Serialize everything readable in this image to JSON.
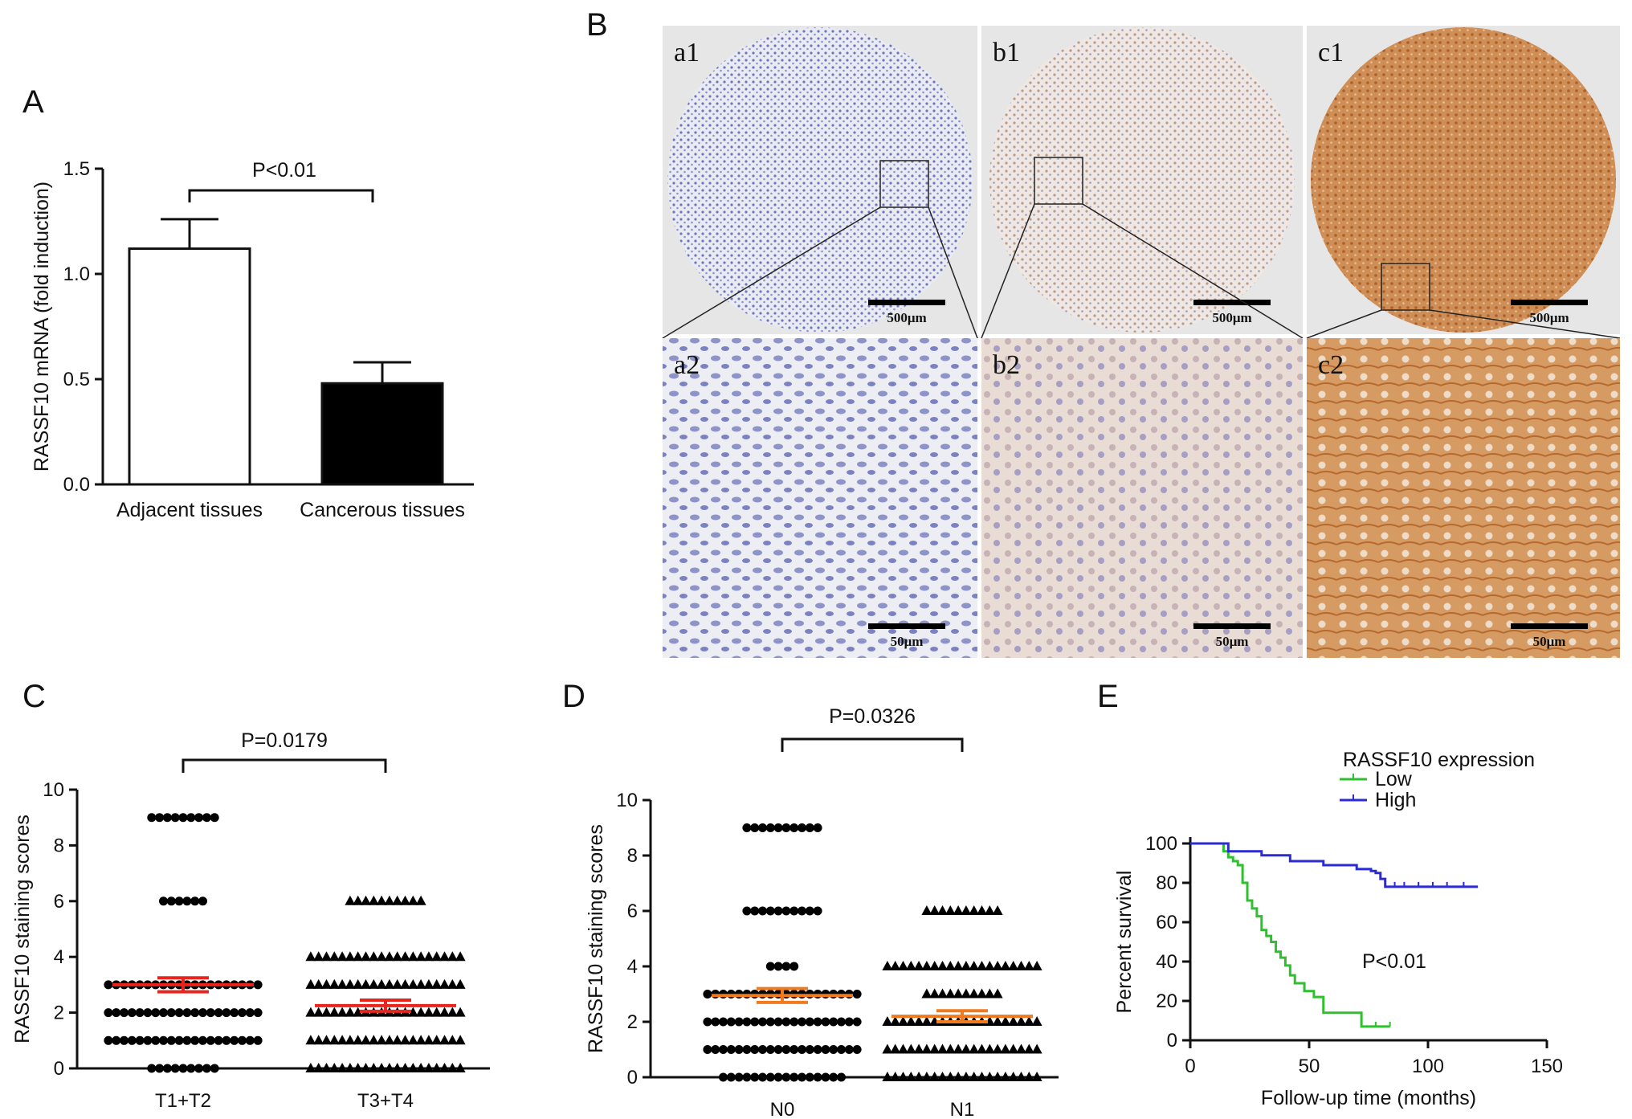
{
  "colors": {
    "axis": "#111111",
    "bar_adjacent": "#ffffff",
    "bar_cancerous": "#000000",
    "mean_sem_C": "#e8241d",
    "mean_sem_D": "#f07b1f",
    "km_low": "#2fbf2f",
    "km_high": "#2b2bd6",
    "ihc_negative": "#b9bedf",
    "ihc_weak": "#ded2cc",
    "ihc_strong": "#c47a42"
  },
  "panels": {
    "A": "A",
    "B": "B",
    "C": "C",
    "D": "D",
    "E": "E"
  },
  "micrographs": {
    "labels": [
      "a1",
      "b1",
      "c1",
      "a2",
      "b2",
      "c2"
    ],
    "scale_bars": [
      "500μm",
      "500μm",
      "500μm",
      "50μm",
      "50μm",
      "50μm"
    ],
    "stain_levels": [
      "negative",
      "weak",
      "strong",
      "negative",
      "weak",
      "strong"
    ]
  },
  "chart_data": [
    {
      "panel": "A",
      "type": "bar",
      "categories": [
        "Adjacent tissues",
        "Cancerous tissues"
      ],
      "values": [
        1.12,
        0.48
      ],
      "errors": [
        0.14,
        0.1
      ],
      "ylabel": "RASSF10 mRNA (fold induction)",
      "ylim": [
        0,
        1.5
      ],
      "yticks": [
        "0.0",
        "0.5",
        "1.0",
        "1.5"
      ],
      "annotation": "P<0.01"
    },
    {
      "panel": "C",
      "type": "scatter",
      "categories": [
        "T1+T2",
        "T3+T4"
      ],
      "ylabel": "RASSF10 staining scores",
      "ylim": [
        0,
        10
      ],
      "yticks": [
        "0",
        "2",
        "4",
        "6",
        "8",
        "10"
      ],
      "annotation": "P=0.0179",
      "series": [
        {
          "group": "T1+T2",
          "marker": "circle",
          "mean": 3.0,
          "sem": 0.25,
          "counts": [
            {
              "y": 9,
              "n": 9
            },
            {
              "y": 6,
              "n": 6
            },
            {
              "y": 3,
              "n": 20
            },
            {
              "y": 2,
              "n": 20
            },
            {
              "y": 1,
              "n": 20
            },
            {
              "y": 0,
              "n": 9
            }
          ]
        },
        {
          "group": "T3+T4",
          "marker": "triangle",
          "mean": 2.25,
          "sem": 0.2,
          "counts": [
            {
              "y": 6,
              "n": 10
            },
            {
              "y": 4,
              "n": 20
            },
            {
              "y": 3,
              "n": 20
            },
            {
              "y": 2,
              "n": 20
            },
            {
              "y": 1,
              "n": 20
            },
            {
              "y": 0,
              "n": 20
            }
          ]
        }
      ]
    },
    {
      "panel": "D",
      "type": "scatter",
      "categories": [
        "N0",
        "N1"
      ],
      "ylabel": "RASSF10 staining scores",
      "ylim": [
        0,
        10
      ],
      "yticks": [
        "0",
        "2",
        "4",
        "6",
        "8",
        "10"
      ],
      "annotation": "P=0.0326",
      "series": [
        {
          "group": "N0",
          "marker": "circle",
          "mean": 2.95,
          "sem": 0.25,
          "counts": [
            {
              "y": 9,
              "n": 10
            },
            {
              "y": 6,
              "n": 10
            },
            {
              "y": 4,
              "n": 4
            },
            {
              "y": 3,
              "n": 20
            },
            {
              "y": 2,
              "n": 20
            },
            {
              "y": 1,
              "n": 20
            },
            {
              "y": 0,
              "n": 16
            }
          ]
        },
        {
          "group": "N1",
          "marker": "triangle",
          "mean": 2.2,
          "sem": 0.2,
          "counts": [
            {
              "y": 6,
              "n": 10
            },
            {
              "y": 4,
              "n": 20
            },
            {
              "y": 3,
              "n": 10
            },
            {
              "y": 2,
              "n": 20
            },
            {
              "y": 1,
              "n": 20
            },
            {
              "y": 0,
              "n": 20
            }
          ]
        }
      ]
    },
    {
      "panel": "E",
      "type": "line",
      "xlabel": "Follow-up time (months)",
      "ylabel": "Percent survival",
      "xlim": [
        0,
        150
      ],
      "ylim": [
        0,
        100
      ],
      "xticks": [
        "0",
        "50",
        "100",
        "150"
      ],
      "yticks": [
        "0",
        "20",
        "40",
        "60",
        "80",
        "100"
      ],
      "legend_title": "RASSF10 expression",
      "legend_position": "top-right",
      "annotation": "P<0.01",
      "series": [
        {
          "name": "Low",
          "x": [
            0,
            12,
            14,
            16,
            18,
            20,
            22,
            24,
            26,
            28,
            30,
            32,
            34,
            36,
            38,
            40,
            42,
            44,
            48,
            52,
            56,
            60,
            64,
            68,
            72,
            76,
            80,
            84
          ],
          "y": [
            100,
            100,
            96,
            93,
            91,
            89,
            80,
            71,
            67,
            63,
            56,
            53,
            50,
            45,
            42,
            38,
            33,
            29,
            25,
            22,
            14,
            14,
            14,
            14,
            7,
            7,
            7,
            7
          ]
        },
        {
          "name": "High",
          "x": [
            0,
            14,
            16,
            22,
            30,
            38,
            42,
            50,
            56,
            62,
            70,
            74,
            76,
            78,
            80,
            82,
            84,
            90,
            96,
            102,
            108,
            115,
            121
          ],
          "y": [
            100,
            100,
            96,
            96,
            94,
            94,
            91,
            91,
            89,
            89,
            87,
            87,
            86,
            85,
            82,
            78,
            78,
            78,
            78,
            78,
            78,
            78,
            78
          ]
        }
      ]
    }
  ]
}
